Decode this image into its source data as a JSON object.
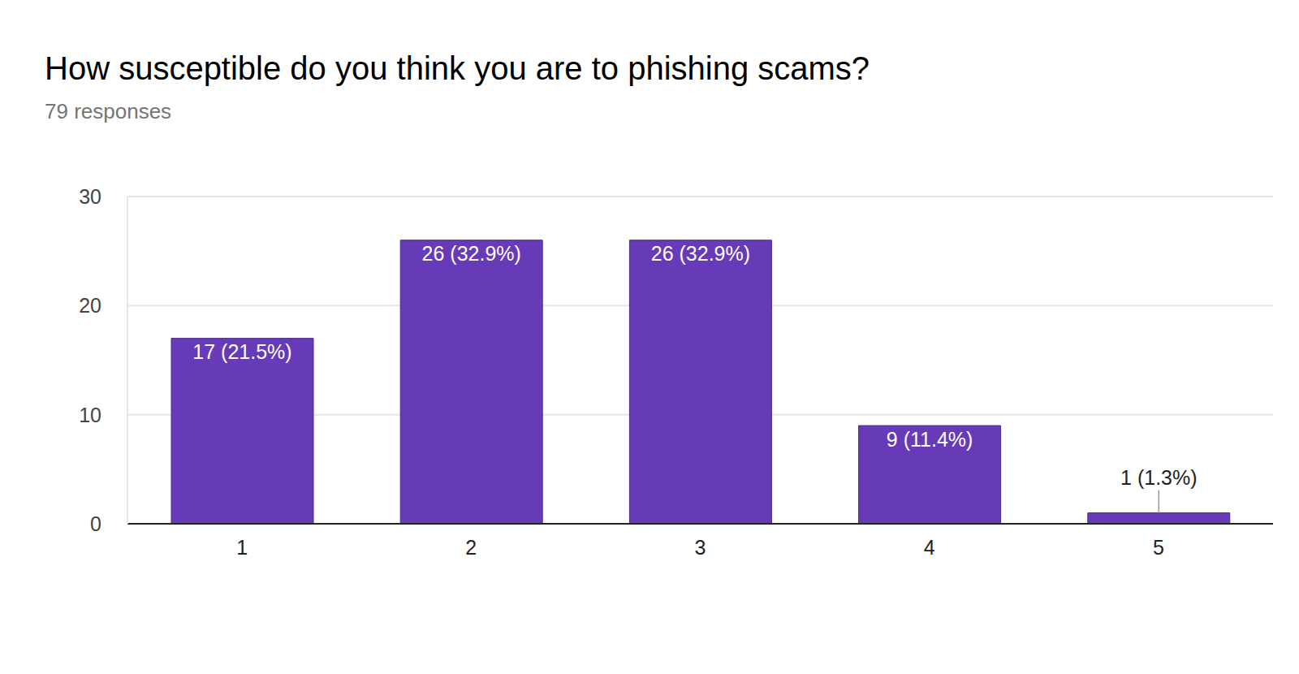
{
  "chart_data": {
    "type": "bar",
    "title": "How susceptible do you think you are to phishing scams?",
    "subtitle": "79 responses",
    "categories": [
      "1",
      "2",
      "3",
      "4",
      "5"
    ],
    "values": [
      17,
      26,
      26,
      9,
      1
    ],
    "value_labels": [
      "17 (21.5%)",
      "26 (32.9%)",
      "26 (32.9%)",
      "9 (11.4%)",
      "1 (1.3%)"
    ],
    "color": "#673ab7",
    "ylim": [
      0,
      30
    ],
    "yticks": [
      0,
      10,
      20,
      30
    ],
    "grid": true,
    "data_labels": true
  }
}
